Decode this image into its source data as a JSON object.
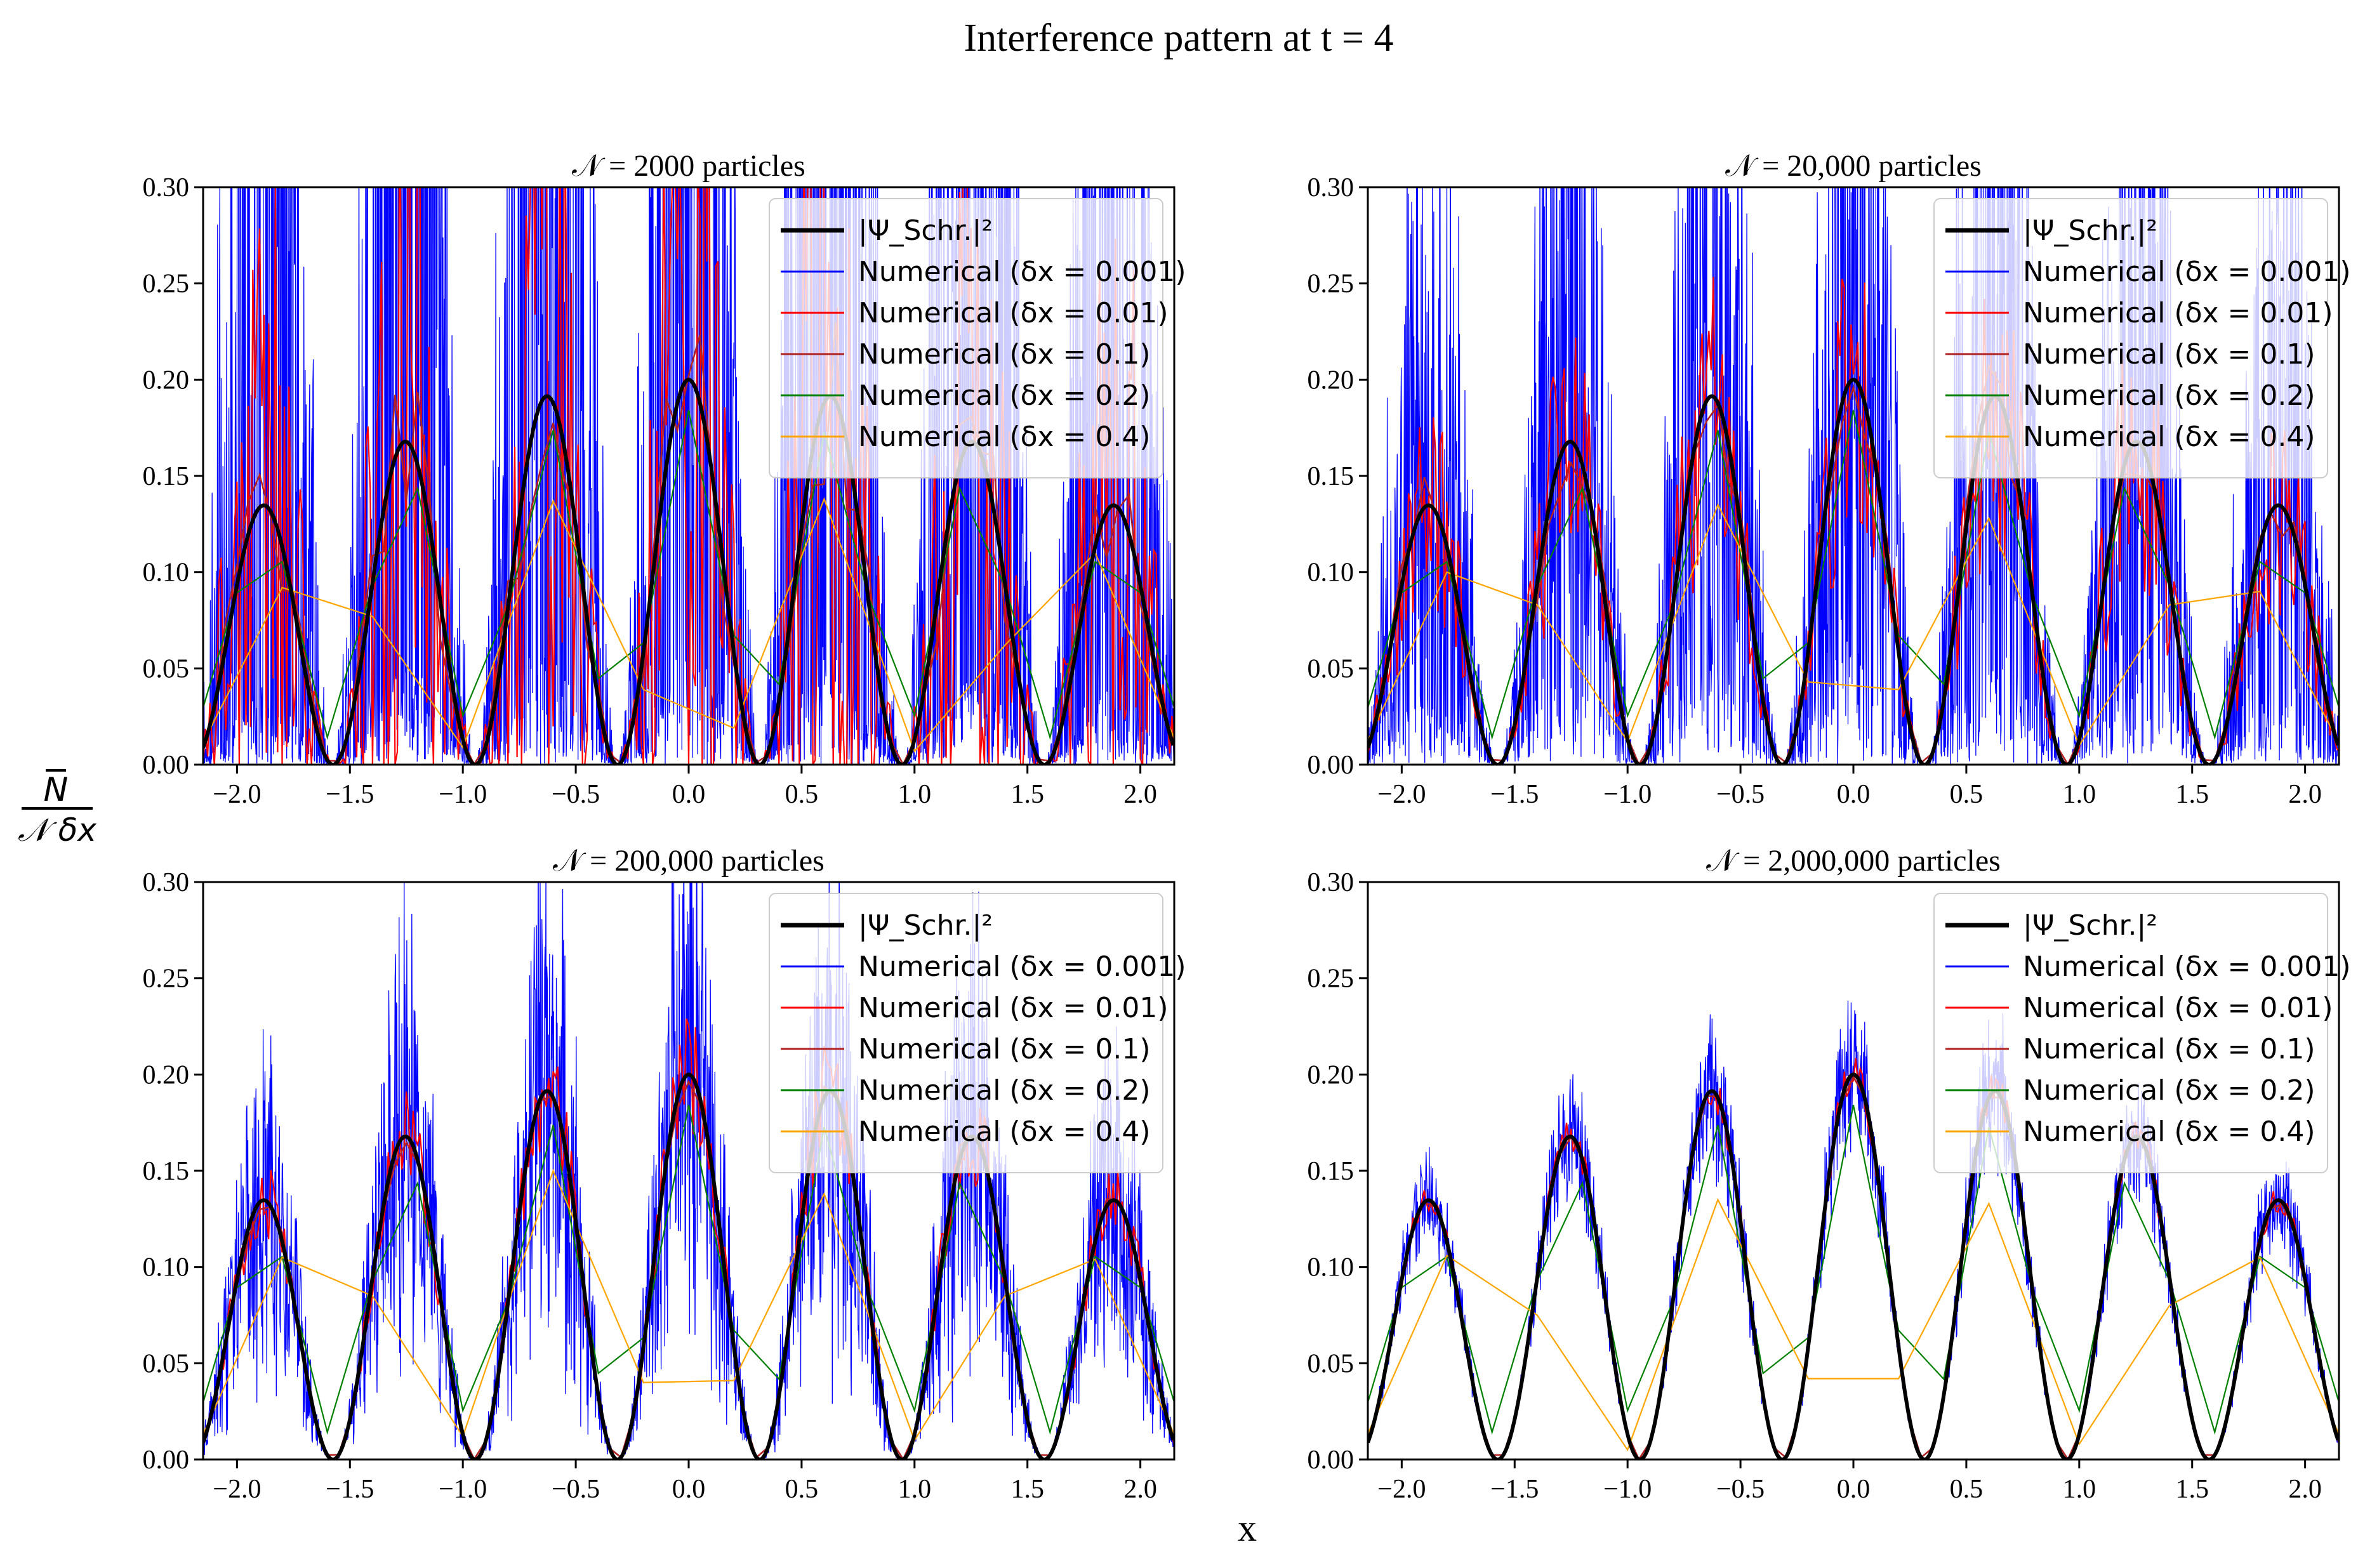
{
  "figure": {
    "title": "Interference pattern at t = 4",
    "xlabel": "x",
    "ylabel_num": "N",
    "ylabel_den": "𝒩 δx"
  },
  "colors": {
    "schr": "#000000",
    "dx_0_001": "#0000ff",
    "dx_0_01": "#ff0000",
    "dx_0_1": "#b22222",
    "dx_0_2": "#008000",
    "dx_0_4": "#ffa500",
    "axes": "#000000"
  },
  "legend_labels": [
    "|Ψ_Schr.|²",
    "Numerical (δx = 0.001)",
    "Numerical (δx = 0.01)",
    "Numerical (δx = 0.1)",
    "Numerical (δx = 0.2)",
    "Numerical (δx = 0.4)"
  ],
  "chart_data": [
    {
      "type": "line",
      "title": "𝒩 = 2000 particles",
      "xlim": [
        -2.15,
        2.15
      ],
      "ylim": [
        0,
        0.3
      ],
      "xticks": [
        -2.0,
        -1.5,
        -1.0,
        -0.5,
        0.0,
        0.5,
        1.0,
        1.5,
        2.0
      ],
      "xtick_labels": [
        "−2.0",
        "−1.5",
        "−1.0",
        "−0.5",
        "0.0",
        "0.5",
        "1.0",
        "1.5",
        "2.0"
      ],
      "yticks": [
        0.0,
        0.05,
        0.1,
        0.15,
        0.2,
        0.25,
        0.3
      ],
      "ytick_labels": [
        "0.00",
        "0.05",
        "0.10",
        "0.15",
        "0.20",
        "0.25",
        "0.30"
      ],
      "legend": "upper right",
      "series": [
        {
          "name": "|Ψ_Schr.|²",
          "formula": "0.2 * exp(-(x/3)^2) * cos^2(π x / 0.63)"
        },
        {
          "name": "Numerical (δx = 0.001)",
          "noise": 5.0
        },
        {
          "name": "Numerical (δx = 0.01)",
          "noise": 1.4
        },
        {
          "name": "Numerical (δx = 0.1)",
          "noise": 0.25
        },
        {
          "name": "Numerical (δx = 0.2)",
          "bins": 0.2
        },
        {
          "name": "Numerical (δx = 0.4)",
          "x": [
            -2.2,
            -1.8,
            -1.4,
            -1.0,
            -0.6,
            -0.2,
            0.2,
            0.6,
            1.0,
            1.4,
            1.8,
            2.2
          ],
          "y": [
            0.0,
            0.092,
            0.077,
            0.009,
            0.137,
            0.039,
            0.019,
            0.138,
            0.007,
            0.062,
            0.11,
            0.0
          ]
        }
      ]
    },
    {
      "type": "line",
      "title": "𝒩 = 20,000 particles",
      "xlim": [
        -2.15,
        2.15
      ],
      "ylim": [
        0,
        0.3
      ],
      "xticks": [
        -2.0,
        -1.5,
        -1.0,
        -0.5,
        0.0,
        0.5,
        1.0,
        1.5,
        2.0
      ],
      "xtick_labels": [
        "−2.0",
        "−1.5",
        "−1.0",
        "−0.5",
        "0.0",
        "0.5",
        "1.0",
        "1.5",
        "2.0"
      ],
      "yticks": [
        0.0,
        0.05,
        0.1,
        0.15,
        0.2,
        0.25,
        0.3
      ],
      "ytick_labels": [
        "0.00",
        "0.05",
        "0.10",
        "0.15",
        "0.20",
        "0.25",
        "0.30"
      ],
      "legend": "upper right",
      "series": [
        {
          "name": "|Ψ_Schr.|²",
          "formula": "0.2 * exp(-(x/3)^2) * cos^2(π x / 0.63)"
        },
        {
          "name": "Numerical (δx = 0.001)",
          "noise": 1.8
        },
        {
          "name": "Numerical (δx = 0.01)",
          "noise": 0.45
        },
        {
          "name": "Numerical (δx = 0.1)",
          "noise": 0.12
        },
        {
          "name": "Numerical (δx = 0.2)",
          "bins": 0.2
        },
        {
          "name": "Numerical (δx = 0.4)",
          "x": [
            -2.2,
            -1.8,
            -1.4,
            -1.0,
            -0.6,
            -0.2,
            0.2,
            0.6,
            1.0,
            1.4,
            1.8,
            2.2
          ],
          "y": [
            0.0,
            0.1,
            0.083,
            0.012,
            0.135,
            0.043,
            0.039,
            0.128,
            0.01,
            0.083,
            0.09,
            0.0
          ]
        }
      ]
    },
    {
      "type": "line",
      "title": "𝒩 = 200,000 particles",
      "xlim": [
        -2.15,
        2.15
      ],
      "ylim": [
        0,
        0.3
      ],
      "xticks": [
        -2.0,
        -1.5,
        -1.0,
        -0.5,
        0.0,
        0.5,
        1.0,
        1.5,
        2.0
      ],
      "xtick_labels": [
        "−2.0",
        "−1.5",
        "−1.0",
        "−0.5",
        "0.0",
        "0.5",
        "1.0",
        "1.5",
        "2.0"
      ],
      "yticks": [
        0.0,
        0.05,
        0.1,
        0.15,
        0.2,
        0.25,
        0.3
      ],
      "ytick_labels": [
        "0.00",
        "0.05",
        "0.10",
        "0.15",
        "0.20",
        "0.25",
        "0.30"
      ],
      "legend": "upper right",
      "series": [
        {
          "name": "|Ψ_Schr.|²",
          "formula": "0.2 * exp(-(x/3)^2) * cos^2(π x / 0.63)"
        },
        {
          "name": "Numerical (δx = 0.001)",
          "noise": 0.55
        },
        {
          "name": "Numerical (δx = 0.01)",
          "noise": 0.15
        },
        {
          "name": "Numerical (δx = 0.1)",
          "noise": 0.05
        },
        {
          "name": "Numerical (δx = 0.2)",
          "bins": 0.2
        },
        {
          "name": "Numerical (δx = 0.4)",
          "x": [
            -2.2,
            -1.8,
            -1.4,
            -1.0,
            -0.6,
            -0.2,
            0.2,
            0.6,
            1.0,
            1.4,
            1.8,
            2.2
          ],
          "y": [
            0.0,
            0.105,
            0.085,
            0.012,
            0.15,
            0.04,
            0.041,
            0.138,
            0.01,
            0.085,
            0.104,
            0.0
          ]
        }
      ]
    },
    {
      "type": "line",
      "title": "𝒩 = 2,000,000 particles",
      "xlim": [
        -2.15,
        2.15
      ],
      "ylim": [
        0,
        0.3
      ],
      "xticks": [
        -2.0,
        -1.5,
        -1.0,
        -0.5,
        0.0,
        0.5,
        1.0,
        1.5,
        2.0
      ],
      "xtick_labels": [
        "−2.0",
        "−1.5",
        "−1.0",
        "−0.5",
        "0.0",
        "0.5",
        "1.0",
        "1.5",
        "2.0"
      ],
      "yticks": [
        0.0,
        0.05,
        0.1,
        0.15,
        0.2,
        0.25,
        0.3
      ],
      "ytick_labels": [
        "0.00",
        "0.05",
        "0.10",
        "0.15",
        "0.20",
        "0.25",
        "0.30"
      ],
      "legend": "upper right",
      "series": [
        {
          "name": "|Ψ_Schr.|²",
          "formula": "0.2 * exp(-(x/3)^2) * cos^2(π x / 0.63)"
        },
        {
          "name": "Numerical (δx = 0.001)",
          "noise": 0.16
        },
        {
          "name": "Numerical (δx = 0.01)",
          "noise": 0.05
        },
        {
          "name": "Numerical (δx = 0.1)",
          "noise": 0.01
        },
        {
          "name": "Numerical (δx = 0.2)",
          "bins": 0.2
        },
        {
          "name": "Numerical (δx = 0.4)",
          "x": [
            -2.2,
            -1.8,
            -1.4,
            -1.0,
            -0.6,
            -0.2,
            0.2,
            0.6,
            1.0,
            1.4,
            1.8,
            2.2
          ],
          "y": [
            0.0,
            0.106,
            0.075,
            0.005,
            0.135,
            0.042,
            0.042,
            0.133,
            0.008,
            0.08,
            0.105,
            0.0
          ]
        }
      ]
    }
  ]
}
